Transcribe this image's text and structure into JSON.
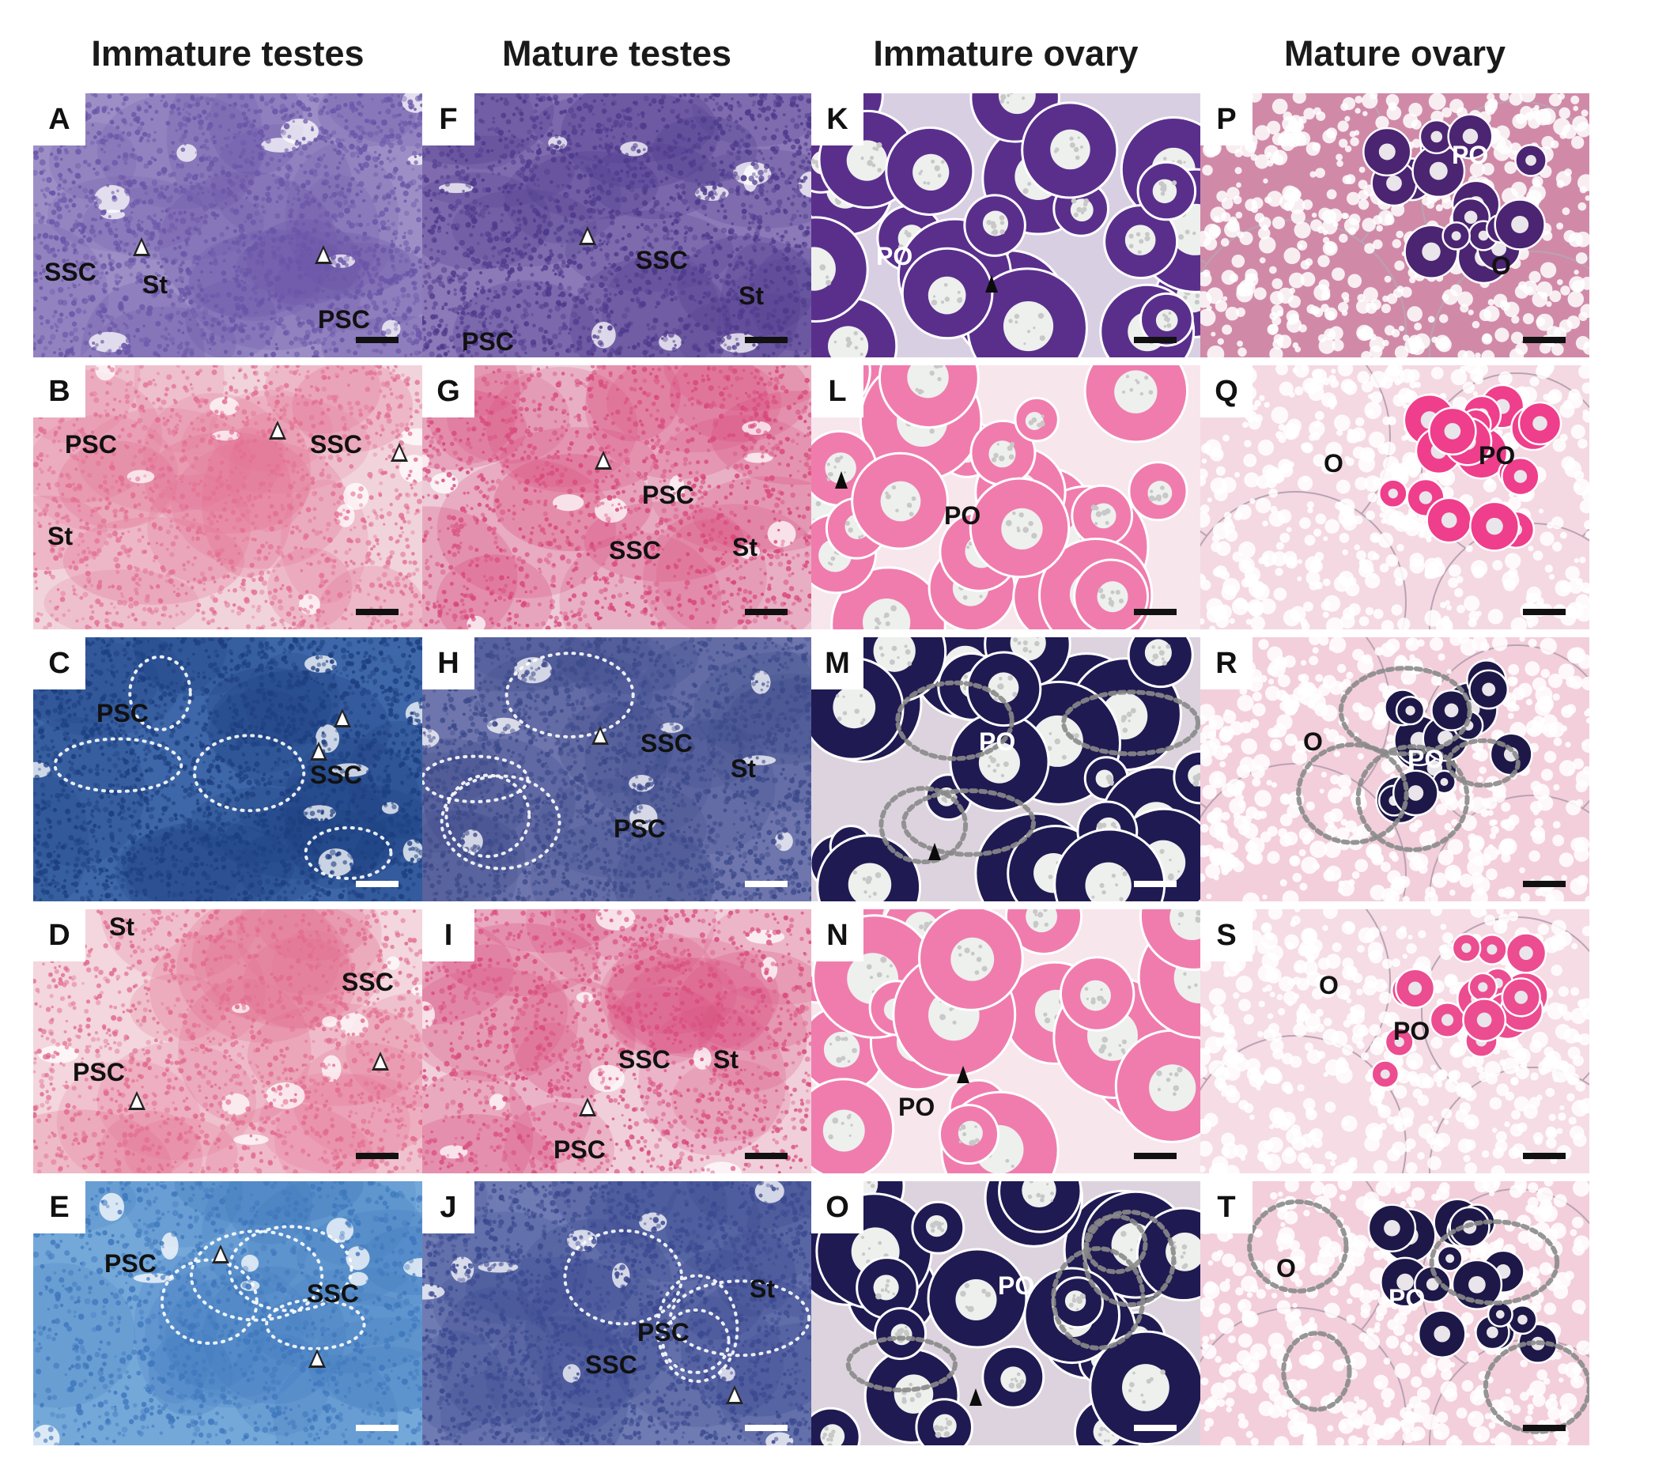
{
  "column_headers": [
    "Immature testes",
    "Mature testes",
    "Immature ovary",
    "Mature ovary"
  ],
  "panels": [
    {
      "letter": "A",
      "stain": "he_testis",
      "bg": "#9d8fc6",
      "cell": "#6a55a8",
      "annotations": [
        "SSC",
        "St",
        "PSC"
      ],
      "arrows": 2
    },
    {
      "letter": "B",
      "stain": "pink_testis",
      "bg": "#f1d3dc",
      "cell": "#e36f92",
      "annotations": [
        "PSC",
        "SSC",
        "St"
      ],
      "arrows": 2
    },
    {
      "letter": "C",
      "stain": "blue_testis",
      "bg": "#3d67a8",
      "cell": "#1d3f80",
      "annotations": [
        "PSC",
        "SSC"
      ],
      "arrows": 2,
      "dotted": true
    },
    {
      "letter": "D",
      "stain": "pink_testis",
      "bg": "#f3d6de",
      "cell": "#e26b8d",
      "annotations": [
        "St",
        "SSC",
        "PSC"
      ],
      "arrows": 2
    },
    {
      "letter": "E",
      "stain": "lightblue_testis",
      "bg": "#74a8d9",
      "cell": "#3f78bd",
      "annotations": [
        "PSC",
        "SSC"
      ],
      "arrows": 2,
      "dotted": true
    },
    {
      "letter": "F",
      "stain": "he_testis",
      "bg": "#8c79b8",
      "cell": "#4e3a8c",
      "annotations": [
        "SSC",
        "St",
        "PSC"
      ],
      "arrows": 1
    },
    {
      "letter": "G",
      "stain": "pink_testis",
      "bg": "#edcbd8",
      "cell": "#d8487a",
      "annotations": [
        "PSC",
        "SSC",
        "St"
      ],
      "arrows": 1
    },
    {
      "letter": "H",
      "stain": "blue_testis",
      "bg": "#6f76ad",
      "cell": "#3c4a8a",
      "annotations": [
        "SSC",
        "St",
        "PSC"
      ],
      "arrows": 1,
      "dotted": true
    },
    {
      "letter": "I",
      "stain": "pink_testis",
      "bg": "#f0cfdb",
      "cell": "#d94c7c",
      "annotations": [
        "SSC",
        "St",
        "PSC"
      ],
      "arrows": 1
    },
    {
      "letter": "J",
      "stain": "blue_testis",
      "bg": "#6f7cb3",
      "cell": "#3b4990",
      "annotations": [
        "St",
        "PSC",
        "SSC"
      ],
      "arrows": 1,
      "dotted": true
    },
    {
      "letter": "K",
      "stain": "he_ovary",
      "bg": "#d9cfe3",
      "cell": "#5a2f8c",
      "annotations": [
        "PO"
      ],
      "arrows": 1
    },
    {
      "letter": "L",
      "stain": "pink_ovary",
      "bg": "#f7e6ec",
      "cell": "#f07cae",
      "annotations": [
        "PO"
      ],
      "arrows": 1
    },
    {
      "letter": "M",
      "stain": "blue_ovary",
      "bg": "#dcd3df",
      "cell": "#1f1a52",
      "annotations": [
        "PO"
      ],
      "arrows": 1,
      "dotted": true
    },
    {
      "letter": "N",
      "stain": "pink_ovary",
      "bg": "#f7e6ec",
      "cell": "#f07cae",
      "annotations": [
        "PO"
      ],
      "arrows": 1
    },
    {
      "letter": "O",
      "stain": "blue_ovary",
      "bg": "#dcd3df",
      "cell": "#1f1a52",
      "annotations": [
        "PO"
      ],
      "arrows": 1,
      "dotted": true
    },
    {
      "letter": "P",
      "stain": "he_mature_ovary",
      "bg": "#d08aa8",
      "cell": "#4b2472",
      "annotations": [
        "PO",
        "O"
      ],
      "arrows": 0
    },
    {
      "letter": "Q",
      "stain": "pink_mature_ovary",
      "bg": "#f4d9e2",
      "cell": "#ef3e8b",
      "annotations": [
        "O",
        "PO"
      ],
      "arrows": 0
    },
    {
      "letter": "R",
      "stain": "blue_mature_ovary",
      "bg": "#f3cfdb",
      "cell": "#1d1848",
      "annotations": [
        "O",
        "PO"
      ],
      "arrows": 0,
      "dotted": true
    },
    {
      "letter": "S",
      "stain": "pink_mature_ovary",
      "bg": "#f5dce5",
      "cell": "#ec4c90",
      "annotations": [
        "O",
        "PO"
      ],
      "arrows": 0
    },
    {
      "letter": "T",
      "stain": "blue_mature_ovary",
      "bg": "#f3cfdb",
      "cell": "#1d1848",
      "annotations": [
        "O",
        "PO"
      ],
      "arrows": 0,
      "dotted": true
    }
  ]
}
